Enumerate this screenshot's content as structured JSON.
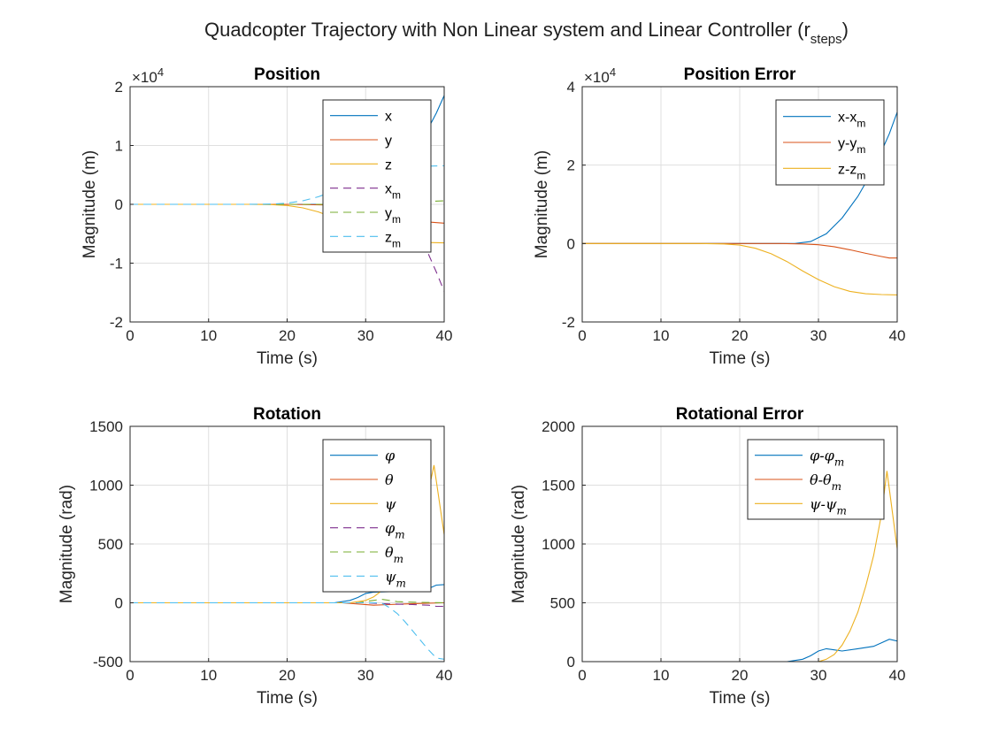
{
  "figure": {
    "title_main": "Quadcopter Trajectory with Non Linear system and Linear Controller (r",
    "title_sub": "steps",
    "title_close": ")"
  },
  "colors": {
    "blue": "#0072BD",
    "red": "#D95319",
    "yellow": "#EDB120",
    "purple": "#7E2F8E",
    "green": "#77AC30",
    "cyan": "#4DBEEE"
  },
  "chart_data": [
    {
      "type": "line",
      "title": "Position",
      "xlabel": "Time (s)",
      "ylabel": "Magnitude (m)",
      "exponent": "×10^4",
      "exp_base": "×10",
      "exp_power": "4",
      "xlim": [
        0,
        40
      ],
      "ylim": [
        -20000,
        20000
      ],
      "xticks": [
        0,
        10,
        20,
        30,
        40
      ],
      "yticks": [
        -20000,
        -10000,
        0,
        10000,
        20000
      ],
      "xtick_labels": [
        "0",
        "10",
        "20",
        "30",
        "40"
      ],
      "ytick_labels": [
        "-2",
        "-1",
        "0",
        "1",
        "2"
      ],
      "grid": true,
      "legend_position": "top-right",
      "series": [
        {
          "name": "x",
          "legend_main": "x",
          "legend_sub": "",
          "color": "blue",
          "dash": "solid",
          "x": [
            0,
            25,
            30,
            33,
            35,
            37,
            38,
            39,
            40
          ],
          "y": [
            0,
            0,
            500,
            3000,
            6000,
            10000,
            13000,
            15500,
            18500
          ]
        },
        {
          "name": "y",
          "legend_main": "y",
          "legend_sub": "",
          "color": "red",
          "dash": "solid",
          "x": [
            0,
            20,
            25,
            28,
            30,
            33,
            35,
            37,
            40
          ],
          "y": [
            0,
            0,
            -100,
            -300,
            -700,
            -1500,
            -2300,
            -2900,
            -3200
          ]
        },
        {
          "name": "z",
          "legend_main": "z",
          "legend_sub": "",
          "color": "yellow",
          "dash": "solid",
          "x": [
            0,
            15,
            18,
            20,
            22,
            24,
            26,
            28,
            30,
            32,
            34,
            36,
            38,
            40
          ],
          "y": [
            0,
            0,
            -50,
            -200,
            -600,
            -1300,
            -2300,
            -3500,
            -4600,
            -5500,
            -6100,
            -6400,
            -6500,
            -6550
          ]
        },
        {
          "name": "x_m",
          "legend_main": "x",
          "legend_sub": "m",
          "color": "purple",
          "dash": "dashed",
          "x": [
            0,
            28,
            31,
            33,
            35,
            37,
            38,
            39,
            40
          ],
          "y": [
            0,
            0,
            -500,
            -1500,
            -3000,
            -6000,
            -8500,
            -11500,
            -14800
          ]
        },
        {
          "name": "y_m",
          "legend_main": "y",
          "legend_sub": "m",
          "color": "green",
          "dash": "dashed",
          "x": [
            0,
            25,
            30,
            33,
            36,
            38,
            40
          ],
          "y": [
            0,
            0,
            100,
            200,
            350,
            500,
            600
          ]
        },
        {
          "name": "z_m",
          "legend_main": "z",
          "legend_sub": "m",
          "color": "cyan",
          "dash": "dashed",
          "x": [
            0,
            15,
            18,
            20,
            22,
            24,
            26,
            28,
            30,
            32,
            34,
            36,
            38,
            40
          ],
          "y": [
            0,
            0,
            50,
            200,
            600,
            1300,
            2300,
            3500,
            4600,
            5500,
            6100,
            6400,
            6500,
            6550
          ]
        }
      ]
    },
    {
      "type": "line",
      "title": "Position Error",
      "xlabel": "Time (s)",
      "ylabel": "Magnitude (m)",
      "exponent": "×10^4",
      "exp_base": "×10",
      "exp_power": "4",
      "xlim": [
        0,
        40
      ],
      "ylim": [
        -20000,
        40000
      ],
      "xticks": [
        0,
        10,
        20,
        30,
        40
      ],
      "yticks": [
        -20000,
        0,
        20000,
        40000
      ],
      "xtick_labels": [
        "0",
        "10",
        "20",
        "30",
        "40"
      ],
      "ytick_labels": [
        "-2",
        "0",
        "2",
        "4"
      ],
      "grid": true,
      "legend_position": "top-right",
      "series": [
        {
          "name": "x-x_m",
          "legend_main": "x-x",
          "legend_sub": "m",
          "color": "blue",
          "dash": "solid",
          "x": [
            0,
            27,
            29,
            31,
            33,
            35,
            37,
            39,
            40
          ],
          "y": [
            0,
            0,
            500,
            2500,
            6500,
            12000,
            19000,
            28000,
            33500
          ]
        },
        {
          "name": "y-y_m",
          "legend_main": "y-y",
          "legend_sub": "m",
          "color": "red",
          "dash": "solid",
          "x": [
            0,
            25,
            28,
            30,
            32,
            34,
            36,
            38,
            39,
            40
          ],
          "y": [
            0,
            0,
            -100,
            -300,
            -800,
            -1600,
            -2500,
            -3300,
            -3700,
            -3700
          ]
        },
        {
          "name": "z-z_m",
          "legend_main": "z-z",
          "legend_sub": "m",
          "color": "yellow",
          "dash": "solid",
          "x": [
            0,
            15,
            18,
            20,
            22,
            24,
            26,
            28,
            30,
            32,
            34,
            36,
            38,
            40
          ],
          "y": [
            0,
            0,
            -100,
            -400,
            -1200,
            -2600,
            -4600,
            -7000,
            -9200,
            -11000,
            -12200,
            -12800,
            -13000,
            -13100
          ]
        }
      ]
    },
    {
      "type": "line",
      "title": "Rotation",
      "xlabel": "Time (s)",
      "ylabel": "Magnitude (rad)",
      "exponent": "",
      "exp_base": "",
      "exp_power": "",
      "xlim": [
        0,
        40
      ],
      "ylim": [
        -500,
        1500
      ],
      "xticks": [
        0,
        10,
        20,
        30,
        40
      ],
      "yticks": [
        -500,
        0,
        500,
        1000,
        1500
      ],
      "xtick_labels": [
        "0",
        "10",
        "20",
        "30",
        "40"
      ],
      "ytick_labels": [
        "-500",
        "0",
        "500",
        "1000",
        "1500"
      ],
      "grid": true,
      "legend_position": "top-right",
      "series": [
        {
          "name": "phi",
          "legend_main": "φ",
          "legend_sub": "",
          "color": "blue",
          "dash": "solid",
          "x": [
            0,
            26,
            28,
            29,
            30,
            31,
            33,
            35,
            37,
            38,
            39,
            40
          ],
          "y": [
            0,
            0,
            20,
            45,
            80,
            90,
            95,
            100,
            110,
            120,
            150,
            155
          ]
        },
        {
          "name": "theta",
          "legend_main": "θ",
          "legend_sub": "",
          "color": "red",
          "dash": "solid",
          "x": [
            0,
            27,
            29,
            31,
            33,
            35,
            37,
            40
          ],
          "y": [
            0,
            0,
            -10,
            -20,
            -15,
            -10,
            -5,
            0
          ]
        },
        {
          "name": "psi",
          "legend_main": "ψ",
          "legend_sub": "",
          "color": "yellow",
          "dash": "solid",
          "x": [
            0,
            28,
            30,
            31,
            32,
            33,
            34,
            35,
            36,
            37,
            38,
            38.7,
            40
          ],
          "y": [
            0,
            0,
            20,
            50,
            100,
            170,
            260,
            380,
            520,
            700,
            950,
            1170,
            580
          ]
        },
        {
          "name": "phi_m",
          "legend_main": "φ",
          "legend_sub": "m",
          "color": "purple",
          "dash": "dashed",
          "x": [
            0,
            30,
            33,
            36,
            38,
            39,
            40
          ],
          "y": [
            0,
            0,
            -10,
            -15,
            -20,
            -30,
            -30
          ]
        },
        {
          "name": "theta_m",
          "legend_main": "θ",
          "legend_sub": "m",
          "color": "green",
          "dash": "dashed",
          "x": [
            0,
            29,
            31,
            32,
            33,
            34,
            36,
            40
          ],
          "y": [
            0,
            0,
            20,
            30,
            20,
            10,
            5,
            0
          ]
        },
        {
          "name": "psi_m",
          "legend_main": "ψ",
          "legend_sub": "m",
          "color": "cyan",
          "dash": "dashed",
          "x": [
            0,
            32,
            33,
            34,
            35,
            36,
            37,
            38,
            39,
            40
          ],
          "y": [
            0,
            0,
            -40,
            -90,
            -160,
            -240,
            -320,
            -400,
            -470,
            -480
          ]
        }
      ]
    },
    {
      "type": "line",
      "title": "Rotational Error",
      "xlabel": "Time (s)",
      "ylabel": "Magnitude (rad)",
      "exponent": "",
      "exp_base": "",
      "exp_power": "",
      "xlim": [
        0,
        40
      ],
      "ylim": [
        0,
        2000
      ],
      "xticks": [
        0,
        10,
        20,
        30,
        40
      ],
      "yticks": [
        0,
        500,
        1000,
        1500,
        2000
      ],
      "xtick_labels": [
        "0",
        "10",
        "20",
        "30",
        "40"
      ],
      "ytick_labels": [
        "0",
        "500",
        "1000",
        "1500",
        "2000"
      ],
      "grid": true,
      "legend_position": "top-right",
      "series": [
        {
          "name": "phi-phi_m",
          "legend_main": "φ-φ",
          "legend_sub": "m",
          "color": "blue",
          "dash": "solid",
          "x": [
            0,
            26,
            28,
            29,
            30,
            31,
            32,
            33,
            35,
            37,
            38,
            39,
            40
          ],
          "y": [
            0,
            0,
            20,
            50,
            90,
            110,
            100,
            90,
            110,
            130,
            160,
            190,
            175
          ]
        },
        {
          "name": "theta-theta_m",
          "legend_main": "θ-θ",
          "legend_sub": "m",
          "color": "red",
          "dash": "solid",
          "x": [
            0,
            27,
            29,
            31,
            33,
            35,
            37,
            40
          ],
          "y": [
            0,
            0,
            -15,
            -25,
            -20,
            -15,
            -10,
            0
          ]
        },
        {
          "name": "psi-psi_m",
          "legend_main": "ψ-ψ",
          "legend_sub": "m",
          "color": "yellow",
          "dash": "solid",
          "x": [
            0,
            30,
            31,
            32,
            33,
            34,
            35,
            36,
            37,
            38,
            38.7,
            40
          ],
          "y": [
            0,
            0,
            20,
            60,
            140,
            260,
            420,
            640,
            900,
            1250,
            1620,
            960
          ]
        }
      ]
    }
  ]
}
